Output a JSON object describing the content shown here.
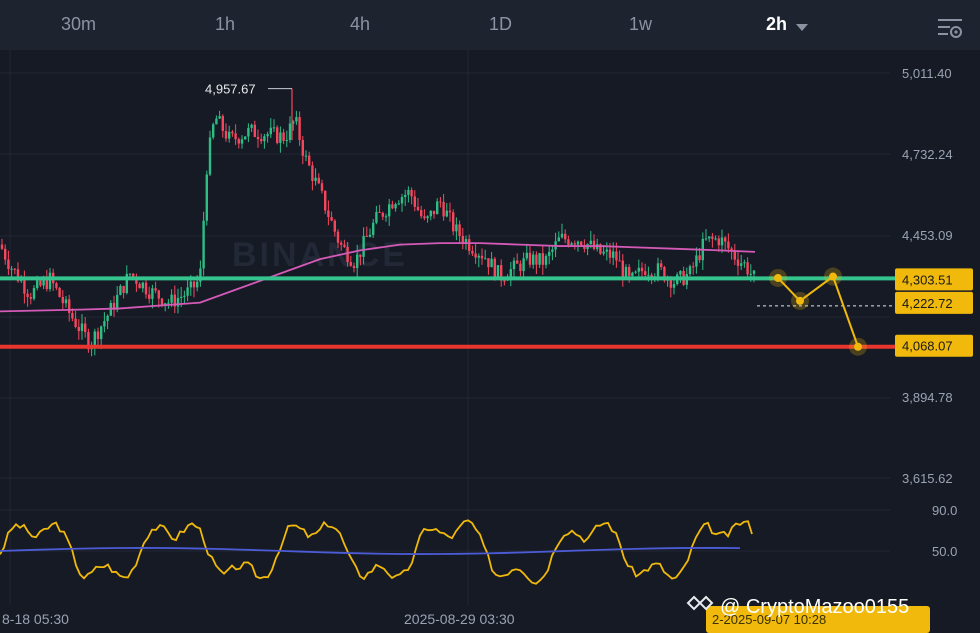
{
  "header": {
    "tabs": [
      {
        "label": "30m"
      },
      {
        "label": "1h"
      },
      {
        "label": "4h"
      },
      {
        "label": "1D"
      },
      {
        "label": "1w"
      },
      {
        "label": "2h"
      }
    ],
    "active_tab": "2h",
    "settings_icon": "chart-settings-icon",
    "dropdown_icon": "chevron-down-icon"
  },
  "watermark": "BINANCE",
  "footer": {
    "date_left": "8-18 05:30",
    "date_mid": "2025-08-29 03:30",
    "date_badge": "2-2025-09-07 10:28",
    "attribution": "@ CryptoMazoo0155"
  },
  "colors": {
    "up": "#2ebd85",
    "down": "#f6465d",
    "ma": "#d45ab8",
    "support": "#35c48e",
    "resistance": "#e8362f",
    "projection": "#f0b90b",
    "osc": "#f0b90b",
    "osc_signal": "#4c5cd6",
    "background": "#161a25"
  },
  "chart_data": [
    {
      "type": "candlestick",
      "title": "",
      "price_axis": [
        "5,011.40",
        "4,732.24",
        "4,453.09",
        "3,894.78",
        "3,615.62"
      ],
      "ylim": [
        3560,
        5060
      ],
      "high_label": "4,957.67",
      "price_badges": [
        {
          "label": "4,303.51",
          "value": 4303.51
        },
        {
          "label": "4,222.72",
          "value": 4222.72
        },
        {
          "label": "4,068.07",
          "value": 4068.07
        }
      ],
      "horizontal_lines": [
        {
          "name": "support",
          "value": 4303.51
        },
        {
          "name": "resistance",
          "value": 4068.07
        }
      ],
      "moving_average": [
        [
          0,
          4190
        ],
        [
          40,
          4193
        ],
        [
          80,
          4196
        ],
        [
          120,
          4200
        ],
        [
          160,
          4210
        ],
        [
          200,
          4220
        ],
        [
          240,
          4270
        ],
        [
          280,
          4320
        ],
        [
          320,
          4370
        ],
        [
          360,
          4400
        ],
        [
          400,
          4420
        ],
        [
          440,
          4425
        ],
        [
          480,
          4425
        ],
        [
          520,
          4420
        ],
        [
          560,
          4415
        ],
        [
          600,
          4415
        ],
        [
          640,
          4410
        ],
        [
          680,
          4405
        ],
        [
          720,
          4400
        ],
        [
          755,
          4395
        ]
      ],
      "projection": [
        4305,
        4226,
        4310,
        4068
      ],
      "x_labels": [
        "8-18 05:30",
        "2025-08-29 03:30"
      ]
    },
    {
      "type": "line",
      "title": "",
      "axis": [
        "90.0",
        "50.0"
      ],
      "ylim": [
        10,
        100
      ],
      "signal_level": 50
    }
  ]
}
